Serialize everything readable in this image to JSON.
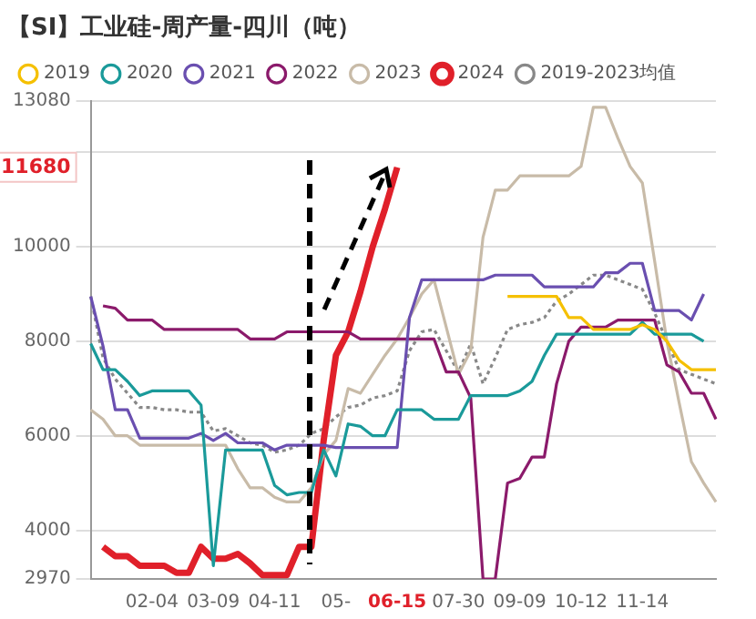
{
  "chart_data": {
    "type": "line",
    "title": "【SI】工业硅-周产量-四川（吨）",
    "categories": [
      null,
      null,
      null,
      null,
      null,
      "02-04",
      null,
      null,
      null,
      null,
      "03-09",
      null,
      null,
      null,
      null,
      "04-11",
      null,
      null,
      null,
      null,
      "05-",
      null,
      null,
      null,
      null,
      "06-15",
      null,
      null,
      null,
      null,
      "07-30",
      null,
      null,
      null,
      null,
      "09-09",
      null,
      null,
      null,
      null,
      "10-12",
      null,
      null,
      null,
      null,
      "11-14",
      null,
      null,
      null,
      null,
      null,
      null
    ],
    "series": [
      {
        "name": "2019",
        "color": "#f5c000",
        "values": [
          null,
          null,
          null,
          null,
          null,
          null,
          null,
          null,
          null,
          null,
          null,
          null,
          null,
          null,
          null,
          null,
          null,
          null,
          null,
          null,
          null,
          null,
          null,
          null,
          null,
          null,
          null,
          null,
          null,
          null,
          null,
          null,
          null,
          null,
          8950,
          8950,
          8950,
          8950,
          8950,
          8500,
          8500,
          8250,
          8250,
          8250,
          8250,
          8350,
          8250,
          8000,
          7600,
          7400,
          7400,
          7400
        ]
      },
      {
        "name": "2020",
        "color": "#1a9a9a",
        "values": [
          7950,
          7400,
          7400,
          7150,
          6850,
          6950,
          6950,
          6950,
          6950,
          6650,
          3250,
          5700,
          5700,
          5700,
          5700,
          4950,
          4750,
          4800,
          4800,
          5700,
          5150,
          6250,
          6200,
          6000,
          6000,
          6550,
          6550,
          6550,
          6350,
          6350,
          6350,
          6850,
          6850,
          6850,
          6850,
          6950,
          7150,
          7700,
          8150,
          8150,
          8150,
          8150,
          8150,
          8150,
          8150,
          8400,
          8150,
          8150,
          8150,
          8150,
          8000,
          null
        ]
      },
      {
        "name": "2021",
        "color": "#6a4fb0",
        "values": [
          8950,
          7900,
          6550,
          6550,
          5950,
          5950,
          5950,
          5950,
          5950,
          6050,
          5900,
          6050,
          5850,
          5850,
          5850,
          5700,
          5800,
          5800,
          5800,
          5800,
          5750,
          5750,
          5750,
          5750,
          5750,
          5750,
          8500,
          9300,
          9300,
          9300,
          9300,
          9300,
          9300,
          9400,
          9400,
          9400,
          9400,
          9150,
          9150,
          9150,
          9150,
          9150,
          9450,
          9450,
          9650,
          9650,
          8650,
          8650,
          8650,
          8450,
          9000,
          null
        ]
      },
      {
        "name": "2022",
        "color": "#8b1a6b",
        "values": [
          null,
          8750,
          8700,
          8450,
          8450,
          8450,
          8250,
          8250,
          8250,
          8250,
          8250,
          8250,
          8250,
          8050,
          8050,
          8050,
          8200,
          8200,
          8200,
          8200,
          8200,
          8200,
          8050,
          8050,
          8050,
          8050,
          8050,
          8050,
          8050,
          7350,
          7350,
          6800,
          2970,
          2970,
          5000,
          5100,
          5550,
          5550,
          7100,
          8000,
          8300,
          8300,
          8300,
          8450,
          8450,
          8450,
          8450,
          7500,
          7350,
          6900,
          6900,
          6350
        ]
      },
      {
        "name": "2023",
        "color": "#c8bba8",
        "values": [
          6550,
          6350,
          6000,
          6000,
          5800,
          5800,
          5800,
          5800,
          5800,
          5800,
          5800,
          5800,
          5300,
          4900,
          4900,
          4700,
          4600,
          4600,
          4900,
          5600,
          5900,
          7000,
          6900,
          7300,
          7700,
          8050,
          8500,
          9000,
          9300,
          8300,
          7300,
          7800,
          10200,
          11200,
          11200,
          11500,
          11500,
          11500,
          11500,
          11500,
          11700,
          12950,
          12950,
          12300,
          11700,
          11350,
          9700,
          8000,
          6700,
          5450,
          5000,
          4600
        ]
      },
      {
        "name": "2024",
        "color": "#e0202a",
        "values": [
          null,
          3650,
          3450,
          3450,
          3250,
          3250,
          3250,
          3100,
          3100,
          3650,
          3400,
          3400,
          3500,
          3300,
          3050,
          3050,
          3050,
          3650,
          3650,
          5900,
          7700,
          8200,
          9050,
          10000,
          10800,
          11680,
          null,
          null,
          null,
          null,
          null,
          null,
          null,
          null,
          null,
          null,
          null,
          null,
          null,
          null,
          null,
          null,
          null,
          null,
          null,
          null,
          null,
          null,
          null,
          null,
          null,
          null
        ]
      },
      {
        "name": "2019-2023均值",
        "color": "#888888",
        "line_style": "dotted",
        "values": [
          8950,
          7650,
          7200,
          6900,
          6600,
          6600,
          6550,
          6550,
          6500,
          6500,
          6100,
          6150,
          6000,
          5850,
          5800,
          5650,
          5700,
          5800,
          6050,
          6150,
          6400,
          6600,
          6650,
          6800,
          6850,
          6950,
          7800,
          8200,
          8250,
          7800,
          7350,
          7950,
          7100,
          7650,
          8250,
          8350,
          8400,
          8500,
          8850,
          9000,
          9200,
          9400,
          9400,
          9300,
          9200,
          9100,
          8600,
          8000,
          7400,
          7300,
          7200,
          7100
        ]
      }
    ],
    "ylim": [
      2970,
      13080
    ],
    "yticks": [
      2970,
      4000,
      6000,
      8000,
      10000,
      {
        "value": 12000,
        "label": null
      },
      13080
    ],
    "annotations": [
      "11680"
    ],
    "grid": "y",
    "legend": "top",
    "line_style": "solid"
  }
}
